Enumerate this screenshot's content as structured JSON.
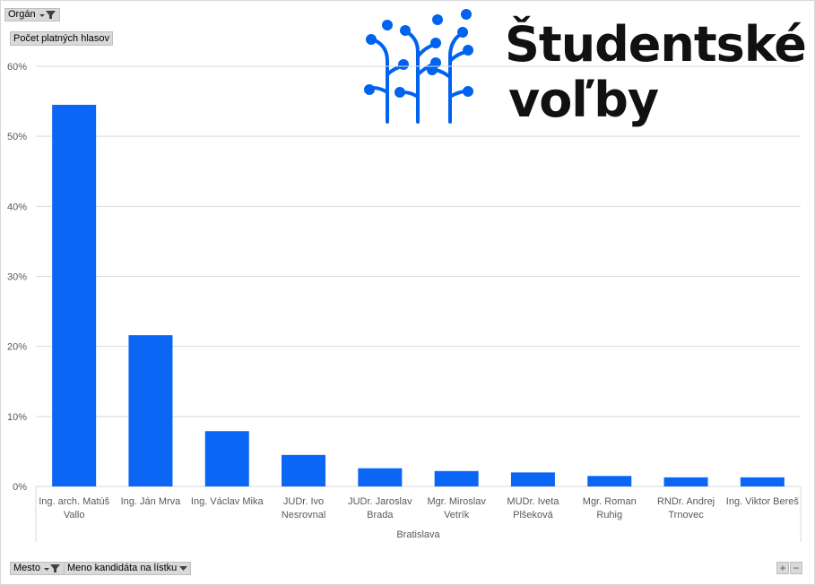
{
  "filters": {
    "organ_label": "Orgán",
    "value_field": "Počet platných hlasov",
    "mesto_label": "Mesto",
    "meno_label": "Meno kandidáta na lístku"
  },
  "logo": {
    "line1": "Študentské",
    "line2": "voľby",
    "color": "#0063f0"
  },
  "zoom": {
    "plus": "+",
    "minus": "−"
  },
  "chart_data": {
    "type": "bar",
    "title": "",
    "xlabel": "",
    "ylabel": "",
    "group_label": "Bratislava",
    "color": "#0b66f5",
    "ylim": [
      0,
      60
    ],
    "yticks": [
      0,
      10,
      20,
      30,
      40,
      50,
      60
    ],
    "ytick_labels": [
      "0%",
      "10%",
      "20%",
      "30%",
      "40%",
      "50%",
      "60%"
    ],
    "grid": true,
    "categories": [
      [
        "Ing. arch. Matúš",
        "Vallo"
      ],
      [
        "Ing. Ján Mrva"
      ],
      [
        "Ing. Václav Mika"
      ],
      [
        "JUDr. Ivo",
        "Nesrovnal"
      ],
      [
        "JUDr. Jaroslav",
        "Brada"
      ],
      [
        "Mgr. Miroslav",
        "Vetrík"
      ],
      [
        "MUDr. Iveta",
        "Plšeková"
      ],
      [
        "Mgr. Roman",
        "Ruhig"
      ],
      [
        "RNDr. Andrej",
        "Trnovec"
      ],
      [
        "Ing. Viktor Bereš"
      ]
    ],
    "values": [
      54.5,
      21.6,
      7.9,
      4.5,
      2.6,
      2.2,
      2.0,
      1.5,
      1.3,
      1.3
    ]
  }
}
